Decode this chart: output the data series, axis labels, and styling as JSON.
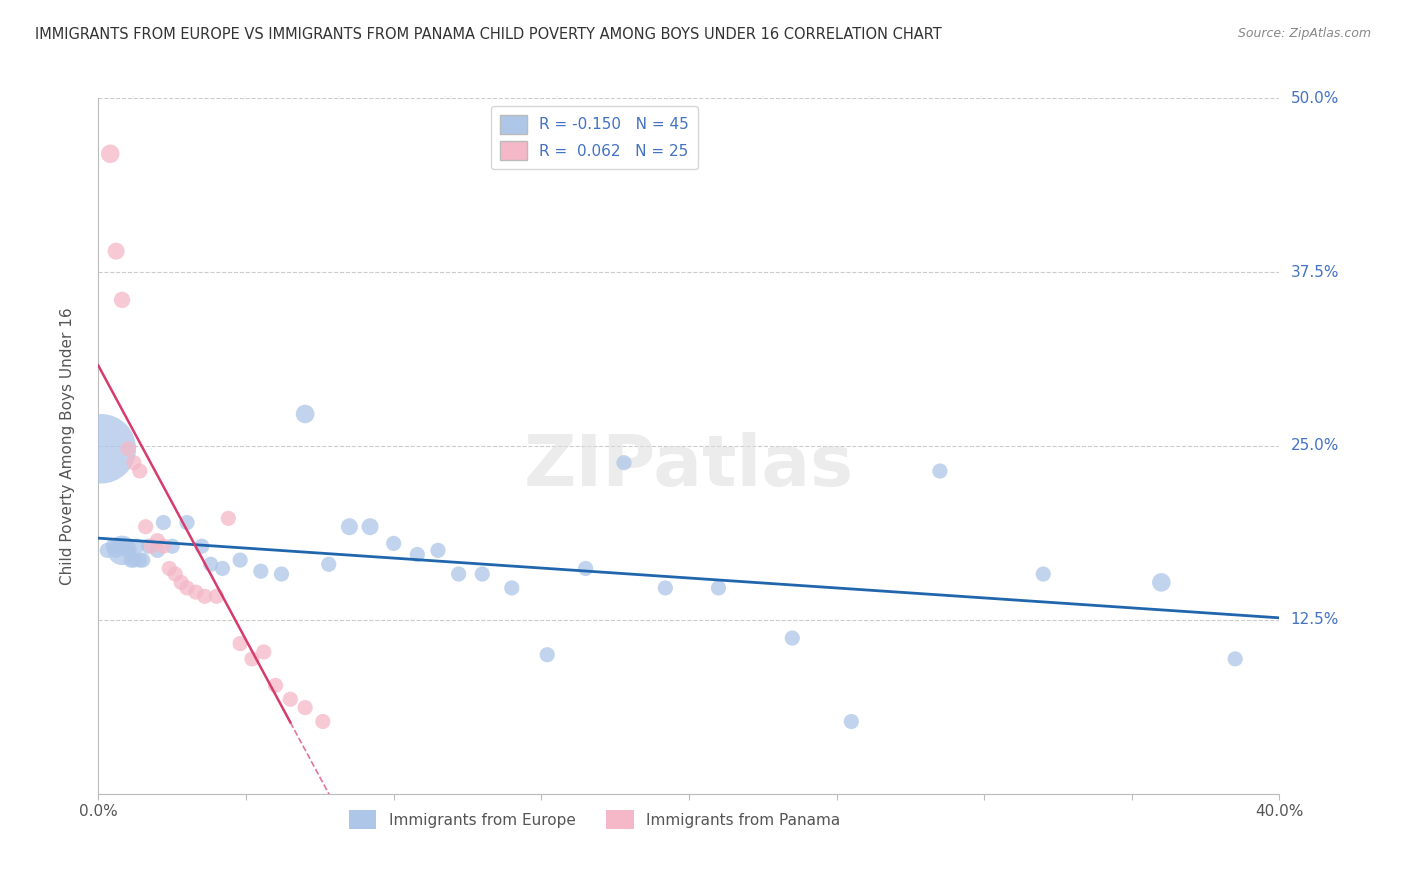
{
  "title": "IMMIGRANTS FROM EUROPE VS IMMIGRANTS FROM PANAMA CHILD POVERTY AMONG BOYS UNDER 16 CORRELATION CHART",
  "source": "Source: ZipAtlas.com",
  "ylabel": "Child Poverty Among Boys Under 16",
  "xlim": [
    0.0,
    0.4
  ],
  "ylim": [
    0.0,
    0.5
  ],
  "europe_color": "#aec6e8",
  "europe_line_color": "#2166ac",
  "panama_color": "#f4b8c8",
  "panama_line_color": "#d63b6b",
  "watermark": "ZIPatlas",
  "legend_label_europe": "Immigrants from Europe",
  "legend_label_panama": "Immigrants from Panama",
  "right_ytick_labels": [
    "12.5%",
    "25.0%",
    "37.5%",
    "50.0%"
  ],
  "right_ytick_positions": [
    0.125,
    0.25,
    0.375,
    0.5
  ],
  "europe_points_x": [
    0.001,
    0.003,
    0.005,
    0.006,
    0.007,
    0.008,
    0.009,
    0.01,
    0.011,
    0.012,
    0.013,
    0.014,
    0.015,
    0.017,
    0.02,
    0.022,
    0.025,
    0.03,
    0.035,
    0.038,
    0.042,
    0.048,
    0.055,
    0.062,
    0.07,
    0.078,
    0.085,
    0.092,
    0.1,
    0.108,
    0.115,
    0.122,
    0.13,
    0.14,
    0.152,
    0.165,
    0.178,
    0.192,
    0.21,
    0.235,
    0.255,
    0.285,
    0.32,
    0.36,
    0.385
  ],
  "europe_points_y": [
    0.248,
    0.175,
    0.178,
    0.175,
    0.178,
    0.175,
    0.178,
    0.175,
    0.168,
    0.168,
    0.178,
    0.168,
    0.168,
    0.178,
    0.175,
    0.195,
    0.178,
    0.195,
    0.178,
    0.165,
    0.162,
    0.168,
    0.16,
    0.158,
    0.273,
    0.165,
    0.192,
    0.192,
    0.18,
    0.172,
    0.175,
    0.158,
    0.158,
    0.148,
    0.1,
    0.162,
    0.238,
    0.148,
    0.148,
    0.112,
    0.052,
    0.232,
    0.158,
    0.152,
    0.097
  ],
  "europe_sizes": [
    2500,
    120,
    120,
    120,
    120,
    450,
    120,
    120,
    120,
    120,
    120,
    120,
    120,
    120,
    120,
    120,
    120,
    120,
    120,
    120,
    120,
    120,
    120,
    120,
    180,
    120,
    150,
    150,
    120,
    120,
    120,
    120,
    120,
    120,
    120,
    120,
    120,
    120,
    120,
    120,
    120,
    120,
    120,
    180,
    120
  ],
  "panama_points_x": [
    0.004,
    0.006,
    0.008,
    0.01,
    0.012,
    0.014,
    0.016,
    0.018,
    0.02,
    0.022,
    0.024,
    0.026,
    0.028,
    0.03,
    0.033,
    0.036,
    0.04,
    0.044,
    0.048,
    0.052,
    0.056,
    0.06,
    0.065,
    0.07,
    0.076
  ],
  "panama_points_y": [
    0.46,
    0.39,
    0.355,
    0.248,
    0.238,
    0.232,
    0.192,
    0.178,
    0.182,
    0.178,
    0.162,
    0.158,
    0.152,
    0.148,
    0.145,
    0.142,
    0.142,
    0.198,
    0.108,
    0.097,
    0.102,
    0.078,
    0.068,
    0.062,
    0.052
  ],
  "panama_sizes": [
    180,
    150,
    140,
    120,
    120,
    120,
    120,
    120,
    120,
    120,
    120,
    120,
    120,
    120,
    120,
    120,
    120,
    120,
    120,
    120,
    120,
    120,
    120,
    120,
    120
  ]
}
